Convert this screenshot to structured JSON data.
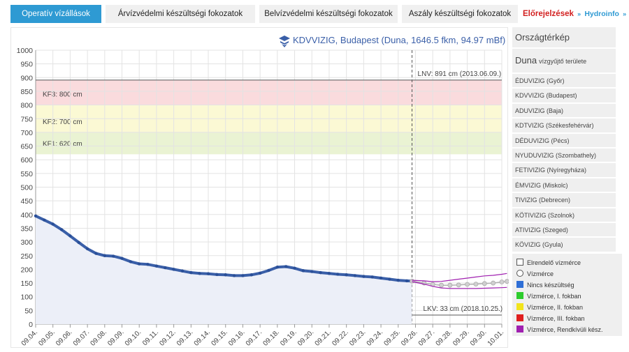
{
  "tabs": [
    {
      "label": "Operatív vízállások",
      "active": true
    },
    {
      "label": "Árvízvédelmi készültségi fokozatok",
      "active": false
    },
    {
      "label": "Belvízvédelmi készültségi fokozatok",
      "active": false
    },
    {
      "label": "Aszály készültségi fokozatok",
      "active": false
    }
  ],
  "brand": {
    "elorejelzesek": "Előrejelzések",
    "hydroinfo": "Hydroinfo",
    "arrows": "»"
  },
  "sidebar": {
    "orszag": "Országtérkép",
    "duna_big": "Duna",
    "duna_small": "vízgyűjtő területe",
    "items": [
      {
        "label": "ÉDUVIZIG (Győr)"
      },
      {
        "label": "KDVVIZIG (Budapest)"
      },
      {
        "label": "ADUVIZIG (Baja)"
      },
      {
        "label": "KDTVIZIG (Székesfehérvár)"
      },
      {
        "label": "DÉDUVIZIG (Pécs)"
      },
      {
        "label": "NYUDUVIZIG (Szombathely)"
      },
      {
        "label": "FETIVIZIG (Nyíregyháza)"
      },
      {
        "label": "ÉMVIZIG (Miskolc)"
      },
      {
        "label": "TIVIZIG (Debrecen)"
      },
      {
        "label": "KÖTIVIZIG (Szolnok)"
      },
      {
        "label": "ATIVIZIG (Szeged)"
      },
      {
        "label": "KÖVIZIG (Gyula)"
      }
    ]
  },
  "legend": [
    {
      "label": "Elrendelő vízmérce",
      "marker": "square-outline",
      "color": "#ffffff"
    },
    {
      "label": "Vízmérce",
      "marker": "circle-outline",
      "color": "#ffffff"
    },
    {
      "label": "Nincs készültség",
      "marker": "square",
      "color": "#2f6fd6"
    },
    {
      "label": "Vízmérce, I. fokban",
      "marker": "square",
      "color": "#2ecc2e"
    },
    {
      "label": "Vízmérce, II. fokban",
      "marker": "square",
      "color": "#f2e41c"
    },
    {
      "label": "Vízmérce, III. fokban",
      "marker": "square",
      "color": "#e01f1f"
    },
    {
      "label": "Vízmérce, Rendkívüli kész.",
      "marker": "square",
      "color": "#a020b0"
    }
  ],
  "chart_data": {
    "type": "line",
    "title": "KDVVIZIG, Budapest (Duna, 1646.5 fkm, 94.97 mBf)",
    "icon": "kdvvizig-logo-icon",
    "ylim": [
      0,
      1000
    ],
    "yticks": [
      0,
      50,
      100,
      150,
      200,
      250,
      300,
      350,
      400,
      450,
      500,
      550,
      600,
      650,
      700,
      750,
      800,
      850,
      900,
      950,
      1000
    ],
    "xticks": [
      "09.04.",
      "09.05.",
      "09.06.",
      "09.07.",
      "09.08.",
      "09.09.",
      "09.10.",
      "09.11.",
      "09.12.",
      "09.13.",
      "09.14.",
      "09.15.",
      "09.16.",
      "09.17.",
      "09.18.",
      "09.19.",
      "09.20.",
      "09.21.",
      "09.22.",
      "09.23.",
      "09.24.",
      "09.25.",
      "09.26.",
      "09.27.",
      "09.28.",
      "09.29.",
      "09.30.",
      "10.01."
    ],
    "grid": true,
    "bands": [
      {
        "label": "KF1: 620 cm",
        "from": 620,
        "to": 700,
        "color": "#eaf3d3"
      },
      {
        "label": "KF2: 700 cm",
        "from": 700,
        "to": 800,
        "color": "#fbf9d4"
      },
      {
        "label": "KF3: 800 cm",
        "from": 800,
        "to": 891,
        "color": "#fadbdd"
      }
    ],
    "lnv": {
      "label": "LNV: 891 cm (2013.06.09.)",
      "value": 891
    },
    "lkv": {
      "label": "LKV: 33 cm (2018.10.25.)",
      "value": 33
    },
    "now_x": 21.8,
    "series": [
      {
        "kind": "observed",
        "color": "#3a5fa8",
        "x": [
          0,
          0.5,
          1,
          1.5,
          2,
          2.5,
          3,
          3.5,
          4,
          4.5,
          5,
          5.5,
          6,
          6.5,
          7,
          7.5,
          8,
          8.5,
          9,
          9.5,
          10,
          10.5,
          11,
          11.5,
          12,
          12.5,
          13,
          13.5,
          14,
          14.5,
          15,
          15.5,
          16,
          16.5,
          17,
          17.5,
          18,
          18.5,
          19,
          19.5,
          20,
          20.5,
          21,
          21.5,
          21.8
        ],
        "y": [
          395,
          380,
          365,
          345,
          322,
          298,
          275,
          258,
          250,
          248,
          240,
          228,
          220,
          218,
          212,
          206,
          200,
          194,
          188,
          185,
          184,
          181,
          180,
          177,
          177,
          180,
          186,
          196,
          208,
          210,
          204,
          195,
          192,
          188,
          185,
          182,
          180,
          177,
          174,
          172,
          168,
          164,
          160,
          158,
          157
        ]
      },
      {
        "kind": "forecast",
        "color": "#b0b0b0",
        "x": [
          21.8,
          22.5,
          23,
          23.5,
          24,
          24.5,
          25,
          25.5,
          26,
          26.5,
          27,
          27.3
        ],
        "y": [
          157,
          150,
          145,
          142,
          142,
          143,
          145,
          146,
          148,
          150,
          154,
          156
        ]
      },
      {
        "kind": "upper-bound",
        "color": "#a020b0",
        "x": [
          21.8,
          22.5,
          23,
          23.5,
          24,
          24.5,
          25,
          25.5,
          26,
          26.5,
          27,
          27.3
        ],
        "y": [
          160,
          158,
          155,
          156,
          160,
          164,
          168,
          172,
          176,
          178,
          182,
          185
        ]
      },
      {
        "kind": "lower-bound",
        "color": "#a020b0",
        "x": [
          21.8,
          22.5,
          23,
          23.5,
          24,
          24.5,
          25,
          25.5,
          26,
          26.5,
          27,
          27.3
        ],
        "y": [
          155,
          146,
          138,
          132,
          130,
          130,
          130,
          130,
          131,
          132,
          133,
          134
        ]
      }
    ]
  }
}
